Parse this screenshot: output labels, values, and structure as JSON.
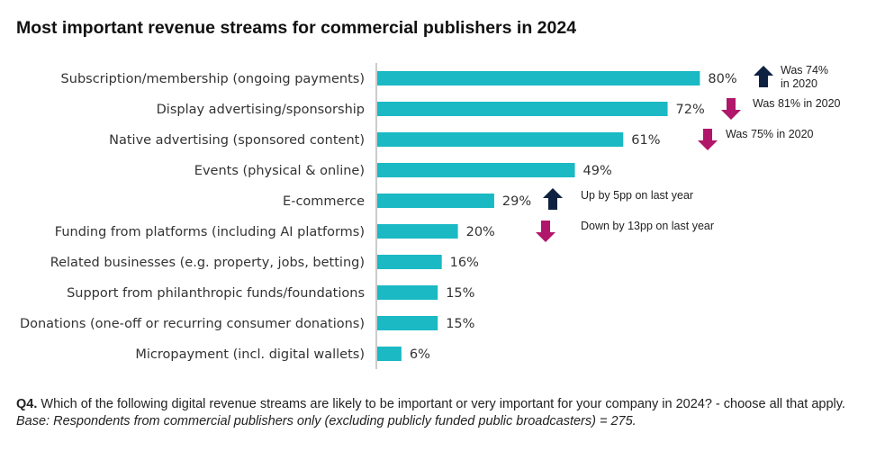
{
  "title": "Most important revenue streams for commercial publishers in 2024",
  "colors": {
    "bar": "#1ab9c4",
    "up": "#0f2140",
    "down": "#b0166a",
    "axis": "#999999"
  },
  "chart_data": {
    "type": "bar",
    "orientation": "horizontal",
    "title": "Most important revenue streams for commercial publishers in 2024",
    "categories": [
      "Subscription/membership (ongoing payments)",
      "Display advertising/sponsorship",
      "Native advertising (sponsored content)",
      "Events (physical & online)",
      "E-commerce",
      "Funding from platforms (including AI platforms)",
      "Related businesses (e.g. property, jobs, betting)",
      "Support from philanthropic funds/foundations",
      "Donations (one-off or recurring consumer donations)",
      "Micropayment (incl. digital wallets)"
    ],
    "values": [
      80,
      72,
      61,
      49,
      29,
      20,
      16,
      15,
      15,
      6
    ],
    "value_labels": [
      "80%",
      "72%",
      "61%",
      "49%",
      "29%",
      "20%",
      "16%",
      "15%",
      "15%",
      "6%"
    ],
    "xlim": [
      0,
      100
    ],
    "grid": false,
    "annotations": [
      {
        "category_index": 0,
        "direction": "up",
        "lines": [
          "Was 74%",
          "in 2020"
        ]
      },
      {
        "category_index": 1,
        "direction": "down",
        "lines": [
          "Was 81% in 2020"
        ]
      },
      {
        "category_index": 2,
        "direction": "down",
        "lines": [
          "Was 75% in 2020"
        ]
      },
      {
        "category_index": 4,
        "direction": "up",
        "lines": [
          "Up by 5pp on last year"
        ]
      },
      {
        "category_index": 5,
        "direction": "down",
        "lines": [
          "Down by 13pp on last year"
        ]
      }
    ]
  },
  "footnote": {
    "question_id": "Q4.",
    "question": " Which of the following digital revenue streams are likely to be important or very important for your company in 2024? - choose all that apply. ",
    "base": "Base: Respondents from commercial publishers only (excluding publicly funded public broadcasters) = 275."
  }
}
